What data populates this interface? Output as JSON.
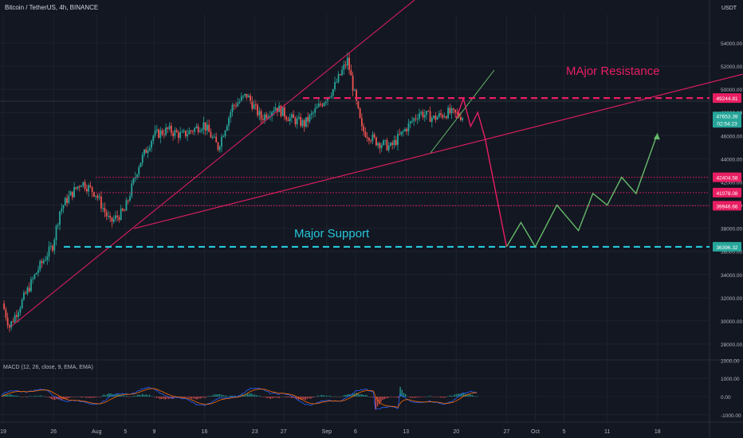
{
  "header": {
    "symbol_label": "Bitcoin / TetherUS, 4h, BINANCE",
    "currency": "USDT"
  },
  "colors": {
    "background": "#131722",
    "grid": "#1e222d",
    "up": "#26a69a",
    "down": "#ef5350",
    "resistance": "#e91e63",
    "support": "#26c6da",
    "projection_down": "#e91e63",
    "projection_up": "#66bb6a",
    "axis_text": "#b2b5be",
    "macd_line": "#2962ff",
    "signal_line": "#ff6d00"
  },
  "annotations": {
    "resistance_label": "MAjor Resistance",
    "support_label": "Major Support"
  },
  "macd": {
    "label": "MACD (12, 26, close, 9, EMA, EMA)",
    "ticks": [
      "2000.00",
      "1000.00",
      "0.00",
      "-1000.00"
    ],
    "tick_values": [
      2000,
      1000,
      0,
      -1000
    ]
  },
  "chart_data": {
    "type": "line",
    "title": "Bitcoin / TetherUS, 4h, BINANCE",
    "x_ticks": [
      "19",
      "26",
      "Aug",
      "5",
      "9",
      "16",
      "23",
      "27",
      "Sep",
      "6",
      "13",
      "20",
      "27",
      "Oct",
      "5",
      "11",
      "18"
    ],
    "y_ticks": [
      28000,
      30000,
      32000,
      34000,
      36000,
      38000,
      40000,
      42000,
      44000,
      46000,
      48000,
      50000,
      52000,
      54000
    ],
    "y_tick_labels": [
      "28000.00",
      "30000.00",
      "32000.00",
      "34000.00",
      "36000.00",
      "38000.00",
      "40000.00",
      "42000.00",
      "44000.00",
      "46000.00",
      "48000.00",
      "50000.00",
      "52000.00",
      "54000.00"
    ],
    "ylim": [
      27000,
      55500
    ],
    "price_levels": [
      {
        "label": "49244.81",
        "value": 49244.81,
        "style": "resistance"
      },
      {
        "label": "42404.58",
        "value": 42404.58,
        "style": "level"
      },
      {
        "label": "41078.08",
        "value": 41078.08,
        "style": "level"
      },
      {
        "label": "39946.66",
        "value": 39946.66,
        "style": "level"
      },
      {
        "label": "36396.32",
        "value": 36396.32,
        "style": "support"
      }
    ],
    "last_price": {
      "label": "47653.39",
      "value": 47653.39,
      "countdown": "02:54:23"
    },
    "series": [
      {
        "name": "BTCUSDT",
        "x": [
          "Jul 19",
          "Jul 20",
          "Jul 22",
          "Jul 24",
          "Jul 26",
          "Jul 27",
          "Jul 28",
          "Jul 30",
          "Aug 1",
          "Aug 3",
          "Aug 5",
          "Aug 7",
          "Aug 9",
          "Aug 11",
          "Aug 13",
          "Aug 16",
          "Aug 18",
          "Aug 20",
          "Aug 22",
          "Aug 24",
          "Aug 26",
          "Aug 28",
          "Aug 30",
          "Sep 1",
          "Sep 3",
          "Sep 5",
          "Sep 7",
          "Sep 9",
          "Sep 11",
          "Sep 13",
          "Sep 15",
          "Sep 17",
          "Sep 19",
          "Sep 21"
        ],
        "values": [
          31500,
          29500,
          32000,
          34500,
          36500,
          39500,
          40500,
          42000,
          41000,
          38500,
          39500,
          43500,
          46000,
          46500,
          46000,
          47000,
          45000,
          48500,
          49500,
          47500,
          48500,
          47500,
          47000,
          48500,
          50000,
          52500,
          46500,
          45500,
          45000,
          46500,
          48000,
          47500,
          48000,
          47653.39
        ]
      },
      {
        "name": "projection_down",
        "x": [
          "Sep 20",
          "Sep 21",
          "Sep 22",
          "Sep 23",
          "Sep 24",
          "Sep 27"
        ],
        "values": [
          47500,
          49200,
          46800,
          48000,
          45800,
          36396.32
        ]
      },
      {
        "name": "projection_up",
        "x": [
          "Sep 27",
          "Sep 29",
          "Oct 1",
          "Oct 4",
          "Oct 7",
          "Oct 9",
          "Oct 11",
          "Oct 13",
          "Oct 15",
          "Oct 18"
        ],
        "values": [
          36396.32,
          38500,
          36396.32,
          40000,
          37800,
          41000,
          40000,
          42400,
          41000,
          46200
        ]
      }
    ],
    "legend": "none",
    "grid": true
  }
}
